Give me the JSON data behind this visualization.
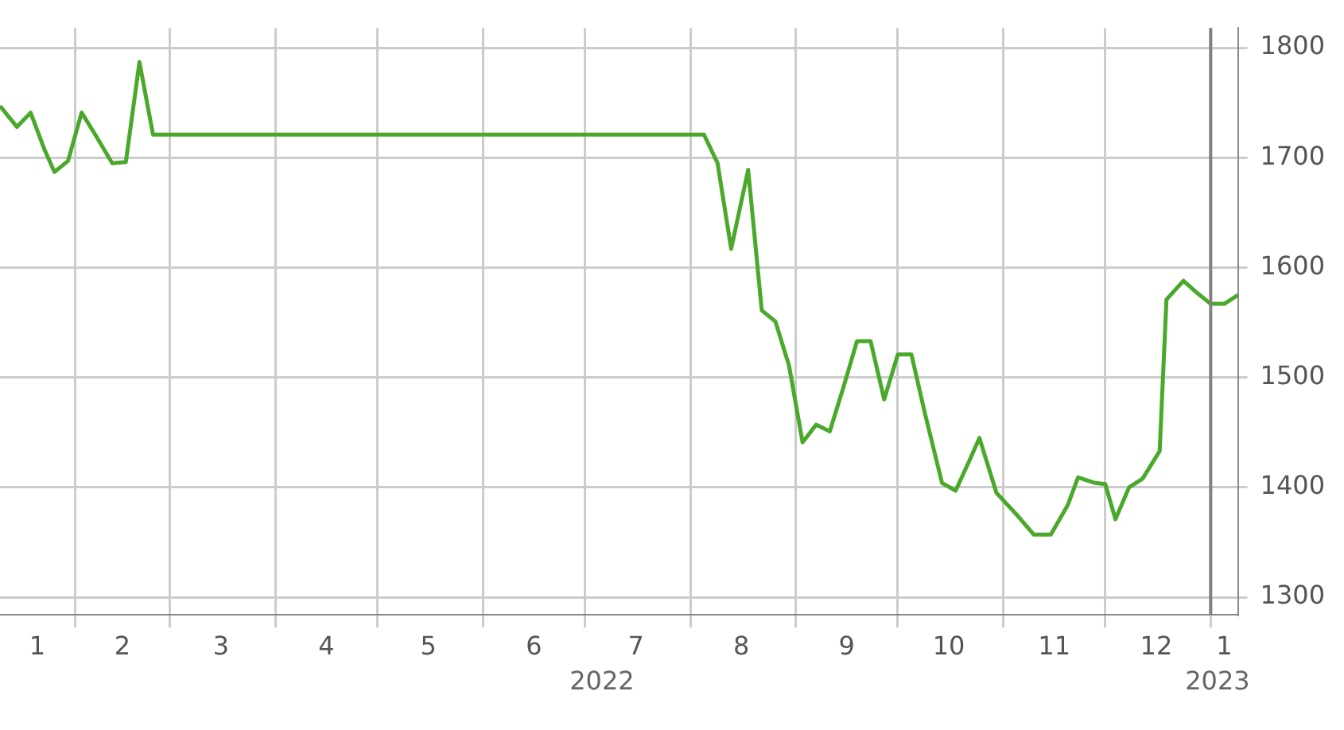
{
  "chart_data": {
    "type": "line",
    "x": [
      "2022-01-10",
      "2022-01-15",
      "2022-01-19",
      "2022-01-23",
      "2022-01-26",
      "2022-01-30",
      "2022-02-03",
      "2022-02-07",
      "2022-02-12",
      "2022-02-16",
      "2022-02-20",
      "2022-02-24",
      "2022-08-05",
      "2022-08-09",
      "2022-08-13",
      "2022-08-18",
      "2022-08-22",
      "2022-08-26",
      "2022-08-30",
      "2022-09-03",
      "2022-09-07",
      "2022-09-11",
      "2022-09-15",
      "2022-09-19",
      "2022-09-23",
      "2022-09-27",
      "2022-10-01",
      "2022-10-05",
      "2022-10-09",
      "2022-10-14",
      "2022-10-18",
      "2022-10-22",
      "2022-10-25",
      "2022-10-30",
      "2022-11-05",
      "2022-11-10",
      "2022-11-15",
      "2022-11-20",
      "2022-11-23",
      "2022-11-28",
      "2022-12-01",
      "2022-12-04",
      "2022-12-08",
      "2022-12-12",
      "2022-12-17",
      "2022-12-19",
      "2022-12-24",
      "2022-12-28",
      "2023-01-01",
      "2023-01-05",
      "2023-01-09"
    ],
    "series": [
      {
        "color": "#4aa82a",
        "values": [
          1747,
          1728,
          1741,
          1708,
          1687,
          1697,
          1741,
          1721,
          1695,
          1696,
          1787,
          1721,
          1721,
          1695,
          1617,
          1689,
          1561,
          1551,
          1511,
          1441,
          1457,
          1451,
          1491,
          1533,
          1533,
          1480,
          1521,
          1521,
          1467,
          1404,
          1397,
          1424,
          1445,
          1395,
          1375,
          1357,
          1357,
          1384,
          1409,
          1404,
          1403,
          1371,
          1400,
          1408,
          1433,
          1571,
          1588,
          1577,
          1567,
          1567,
          1575
        ]
      }
    ],
    "xlim": [
      "2022-01-10",
      "2023-01-09"
    ],
    "xticks": [
      {
        "value": "2022-01-21",
        "label": "1"
      },
      {
        "value": "2022-02-01",
        "label": null
      },
      {
        "value": "2022-02-15",
        "label": "2"
      },
      {
        "value": "2022-03-01",
        "label": null
      },
      {
        "value": "2022-03-16",
        "label": "3"
      },
      {
        "value": "2022-04-01",
        "label": null
      },
      {
        "value": "2022-04-16",
        "label": "4"
      },
      {
        "value": "2022-05-01",
        "label": null
      },
      {
        "value": "2022-05-16",
        "label": "5"
      },
      {
        "value": "2022-06-01",
        "label": null
      },
      {
        "value": "2022-06-16",
        "label": "6"
      },
      {
        "value": "2022-07-01",
        "label": null
      },
      {
        "value": "2022-07-16",
        "label": "7"
      },
      {
        "value": "2022-08-01",
        "label": null
      },
      {
        "value": "2022-08-16",
        "label": "8"
      },
      {
        "value": "2022-09-01",
        "label": null
      },
      {
        "value": "2022-09-16",
        "label": "9"
      },
      {
        "value": "2022-10-01",
        "label": null
      },
      {
        "value": "2022-10-16",
        "label": "10"
      },
      {
        "value": "2022-11-01",
        "label": null
      },
      {
        "value": "2022-11-16",
        "label": "11"
      },
      {
        "value": "2022-12-01",
        "label": null
      },
      {
        "value": "2022-12-16",
        "label": "12"
      },
      {
        "value": "2023-01-01",
        "label": null
      },
      {
        "value": "2023-01-05",
        "label": "1"
      }
    ],
    "x2lim": [
      "2022-01-10",
      "2023-01-09"
    ],
    "x2ticks": [
      {
        "value": "2022-07-06",
        "label": "2022"
      },
      {
        "value": "2023-01-03",
        "label": "2023"
      }
    ],
    "ylim": [
      1284,
      1818
    ],
    "yticks": [
      1300,
      1400,
      1500,
      1600,
      1700,
      1800
    ],
    "grid": true,
    "ref_lines": [
      {
        "axis": "x",
        "value": "2023-01-01",
        "color": "#808080"
      }
    ]
  }
}
